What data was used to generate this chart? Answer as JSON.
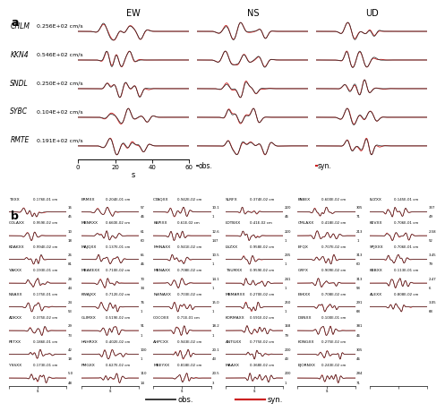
{
  "panel_a_stations": [
    "CHLM",
    "KKN4",
    "SNDL",
    "SYBC",
    "RMTE"
  ],
  "panel_a_amplitudes": [
    "0.256E+02 cm/s",
    "0.546E+02 cm/s",
    "0.250E+02 cm/s",
    "0.104E+02 cm/s",
    "0.191E+02 cm/s"
  ],
  "panel_a_components": [
    "EW",
    "NS",
    "UD"
  ],
  "obs_color": "#2a2a2a",
  "syn_color": "#cc2222",
  "background_color": "#ffffff",
  "panel_b_rows": 8,
  "panel_b_cols": 6,
  "stations_b": [
    {
      "name": "TXXX",
      "amp": "0.176E-01 cm",
      "v1": 16,
      "v2": 45
    },
    {
      "name": "ERMXX",
      "amp": "0.204E-01 cm",
      "v1": 57,
      "v2": 46
    },
    {
      "name": "CTAQXX",
      "amp": "0.942E-02 cm",
      "v1": 10.1,
      "v2": 1
    },
    {
      "name": "SLRFX",
      "amp": "0.374E-02 cm",
      "v1": 220,
      "v2": 46
    },
    {
      "name": "PABEX",
      "amp": "0.600E-02 cm",
      "v1": 305,
      "v2": 71
    },
    {
      "name": "LVZXX",
      "amp": "0.145E-01 cm",
      "v1": 337,
      "v2": 49
    },
    {
      "name": "COLAXX",
      "amp": "0.959E-02 cm",
      "v1": 10,
      "v2": 18
    },
    {
      "name": "MBNRXX",
      "amp": "0.660E-02 cm",
      "v1": 61,
      "v2": 60
    },
    {
      "name": "KAPIXX",
      "amp": "0.61E-02 cm",
      "v1": 12.6,
      "v2": 147
    },
    {
      "name": "LDTBXX",
      "amp": "0.41E-02 cm",
      "v1": 220,
      "v2": 1
    },
    {
      "name": "CMLAXX",
      "amp": "0.418E-02 cm",
      "v1": 213,
      "v2": 1
    },
    {
      "name": "KEVXX",
      "amp": "0.706E-01 cm",
      "v1": 2.58,
      "v2": 52
    },
    {
      "name": "KDAKXX",
      "amp": "0.994E-02 cm",
      "v1": 26,
      "v2": 81
    },
    {
      "name": "MAJQXX",
      "amp": "0.137E-01 cm",
      "v1": 65,
      "v2": 46
    },
    {
      "name": "MHNAXX",
      "amp": "0.941E-02 cm",
      "v1": 10.5,
      "v2": 1
    },
    {
      "name": "LSZXX",
      "amp": "0.958E-02 cm",
      "v1": 235,
      "v2": 1
    },
    {
      "name": "BFQX",
      "amp": "0.707E-02 cm",
      "v1": 313,
      "v2": 60
    },
    {
      "name": "SPJXXX",
      "amp": "0.706E-01 cm",
      "v1": 3.45,
      "v2": 79
    },
    {
      "name": "YAKXX",
      "amp": "0.193E-01 cm",
      "v1": 28,
      "v2": 44
    },
    {
      "name": "MBAKEXX",
      "amp": "0.710E-02 cm",
      "v1": 70,
      "v2": 34
    },
    {
      "name": "MBNAXX",
      "amp": "0.708E-02 cm",
      "v1": 14.1,
      "v2": 1
    },
    {
      "name": "TSUMXX",
      "amp": "0.959E-02 cm",
      "v1": 241,
      "v2": 1
    },
    {
      "name": "GRFX",
      "amp": "0.909E-02 cm",
      "v1": 313,
      "v2": 58
    },
    {
      "name": "KBBXX",
      "amp": "0.113E-01 cm",
      "v1": 2.47,
      "v2": 6
    },
    {
      "name": "NNAXX",
      "amp": "0.175E-01 cm",
      "v1": 24,
      "v2": 53
    },
    {
      "name": "KWAJXX",
      "amp": "0.712E-02 cm",
      "v1": 76,
      "v2": 1
    },
    {
      "name": "NWNAXX",
      "amp": "0.703E-02 cm",
      "v1": 15.0,
      "v2": 1
    },
    {
      "name": "MBMARXX",
      "amp": "0.270E-02 cm",
      "v1": 250,
      "v2": 1
    },
    {
      "name": "ESKXX",
      "amp": "0.708E-02 cm",
      "v1": 291,
      "v2": 68
    },
    {
      "name": "ALEXX",
      "amp": "0.808E-02 cm",
      "v1": 3.05,
      "v2": 68
    },
    {
      "name": "ADKXX",
      "amp": "0.375E-02 cm",
      "v1": 29,
      "v2": 73
    },
    {
      "name": "GLIMXX",
      "amp": "0.519E-02 cm",
      "v1": 91,
      "v2": 1
    },
    {
      "name": "COCOXX",
      "amp": "0.71E-01 cm",
      "v1": 18.2,
      "v2": 1
    },
    {
      "name": "KORMAXX",
      "amp": "0.591E-02 cm",
      "v1": 168,
      "v2": 79
    },
    {
      "name": "DBNXX",
      "amp": "0.100E-01 cm",
      "v1": 381,
      "v2": 46
    },
    {
      "name": "",
      "amp": "",
      "v1": 0,
      "v2": 0
    },
    {
      "name": "PETXX",
      "amp": "0.186E-01 cm",
      "v1": 42,
      "v2": 18
    },
    {
      "name": "HNHRXX",
      "amp": "0.402E-02 cm",
      "v1": 100,
      "v2": 1
    },
    {
      "name": "AHPCXX",
      "amp": "0.943E-02 cm",
      "v1": 20.1,
      "v2": 43
    },
    {
      "name": "ANTGXX",
      "amp": "0.775E-02 cm",
      "v1": 200,
      "v2": 43
    },
    {
      "name": "KONGXX",
      "amp": "0.275E-02 cm",
      "v1": 305,
      "v2": 46
    },
    {
      "name": "",
      "amp": "",
      "v1": 0,
      "v2": 0
    },
    {
      "name": "YSSXX",
      "amp": "0.173E-01 cm",
      "v1": 5.0,
      "v2": 48
    },
    {
      "name": "PMGXX",
      "amp": "0.627E-02 cm",
      "v1": 110,
      "v2": 14
    },
    {
      "name": "MBEYXX",
      "amp": "0.818E-02 cm",
      "v1": 20.5,
      "v2": 3
    },
    {
      "name": "MAAXX",
      "amp": "0.368E-02 cm",
      "v1": 200,
      "v2": 1
    },
    {
      "name": "BJORNXX",
      "amp": "0.243E-02 cm",
      "v1": 284,
      "v2": 71
    },
    {
      "name": "",
      "amp": "",
      "v1": 0,
      "v2": 0
    }
  ]
}
